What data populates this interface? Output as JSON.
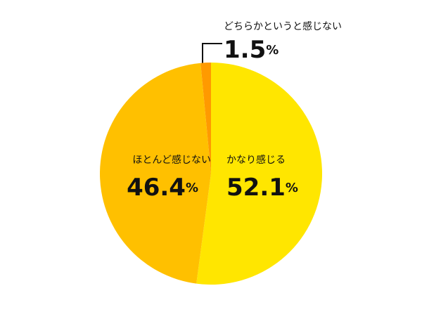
{
  "chart_data": {
    "type": "pie",
    "categories": [
      "かなり感じる",
      "ほとんど感じない",
      "どちらかというと感じない"
    ],
    "values": [
      52.1,
      46.4,
      1.5
    ],
    "value_labels": [
      "52.1%",
      "46.4%",
      "1.5%"
    ],
    "colors": [
      "#ffe600",
      "#ffc000",
      "#ff9a00"
    ]
  }
}
